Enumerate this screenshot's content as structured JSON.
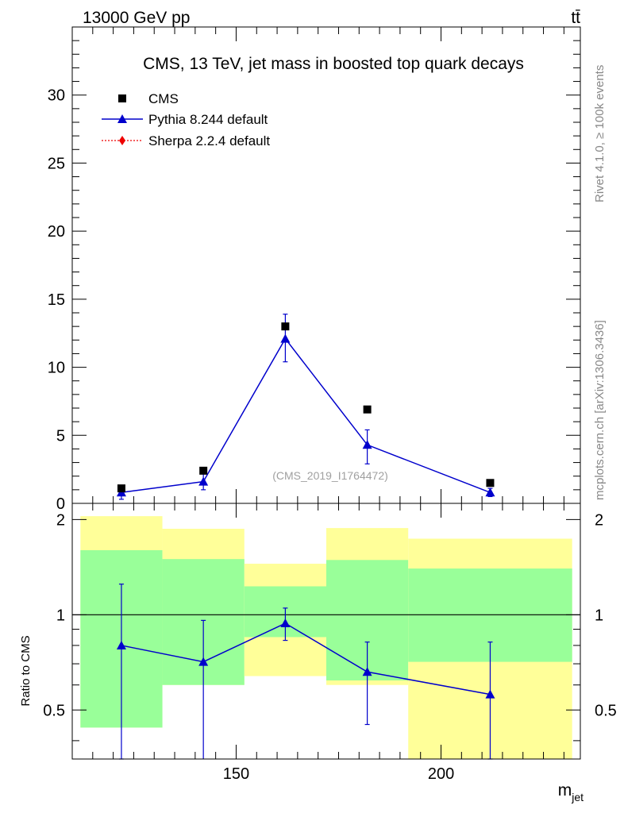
{
  "header": {
    "left": "13000 GeV pp",
    "right": "tt̄"
  },
  "side_labels": {
    "rivet": "Rivet 4.1.0, ≥ 100k events",
    "mcplots": "mcplots.cern.ch [arXiv:1306.3436]"
  },
  "chart_data": [
    {
      "type": "scatter",
      "title": "CMS, 13 TeV, jet mass in boosted top quark decays",
      "watermark": "(CMS_2019_I1764472)",
      "xlabel": "m",
      "xlabel_sub": "jet",
      "ylabel": "",
      "xlim": [
        110,
        234
      ],
      "ylim": [
        0,
        35
      ],
      "yticks": [
        0,
        5,
        10,
        15,
        20,
        25,
        30
      ],
      "ytick_labels": [
        "0",
        "5",
        "10",
        "15",
        "20",
        "25",
        "30"
      ],
      "x_bin_edges": [
        112,
        132,
        152,
        172,
        192,
        232
      ],
      "series": [
        {
          "name": "CMS",
          "style": "square-markers",
          "color": "#000000",
          "x": [
            122,
            142,
            162,
            182,
            212
          ],
          "y": [
            1.1,
            2.4,
            13.0,
            6.9,
            1.5
          ]
        },
        {
          "name": "Pythia 8.244 default",
          "style": "line-triangles",
          "color": "#0000cc",
          "x": [
            122,
            142,
            162,
            182,
            212
          ],
          "y": [
            0.8,
            1.6,
            12.1,
            4.3,
            0.8
          ],
          "err_low": [
            0.5,
            0.6,
            1.7,
            1.4,
            0.3
          ],
          "err_high": [
            0.5,
            0.7,
            1.8,
            1.1,
            0.3
          ]
        },
        {
          "name": "Sherpa 2.2.4 default",
          "style": "dotted-diamonds",
          "color": "#ee0000",
          "x": [],
          "y": []
        }
      ]
    },
    {
      "type": "band-ratio",
      "ylabel": "Ratio to CMS",
      "xlim": [
        110,
        234
      ],
      "ylim": [
        0.35,
        2.25
      ],
      "yticks": [
        0.5,
        1,
        2
      ],
      "ytick_labels": [
        "0.5",
        "1",
        "2"
      ],
      "xticks": [
        150,
        200
      ],
      "xtick_labels": [
        "150",
        "200"
      ],
      "reference": 1,
      "bands": [
        {
          "x0": 112,
          "x1": 132,
          "yellow": [
            0.44,
            2.05
          ],
          "green": [
            0.44,
            1.6
          ]
        },
        {
          "x0": 132,
          "x1": 152,
          "yellow": [
            0.6,
            1.87
          ],
          "green": [
            0.6,
            1.5
          ]
        },
        {
          "x0": 152,
          "x1": 172,
          "yellow": [
            0.64,
            1.45
          ],
          "green": [
            0.85,
            1.23
          ]
        },
        {
          "x0": 172,
          "x1": 192,
          "yellow": [
            0.6,
            1.88
          ],
          "green": [
            0.62,
            1.49
          ]
        },
        {
          "x0": 192,
          "x1": 232,
          "yellow": [
            0.35,
            1.74
          ],
          "green": [
            0.71,
            1.4
          ]
        }
      ],
      "series": [
        {
          "name": "Pythia 8.244 default",
          "color": "#0000cc",
          "x": [
            122,
            142,
            162,
            182,
            212
          ],
          "y": [
            0.8,
            0.71,
            0.94,
            0.66,
            0.56
          ],
          "err_low": [
            0.45,
            0.4,
            0.11,
            0.21,
            0.21
          ],
          "err_high": [
            0.45,
            0.25,
            0.11,
            0.16,
            0.26
          ]
        }
      ]
    }
  ]
}
